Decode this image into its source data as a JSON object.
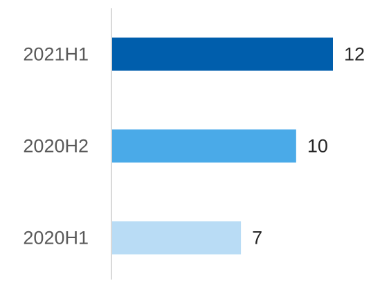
{
  "chart_data": {
    "type": "bar",
    "orientation": "horizontal",
    "categories": [
      "2021H1",
      "2020H2",
      "2020H1"
    ],
    "values": [
      12,
      10,
      7
    ],
    "colors": [
      "#005eac",
      "#4aaae8",
      "#b9dcf5"
    ]
  }
}
